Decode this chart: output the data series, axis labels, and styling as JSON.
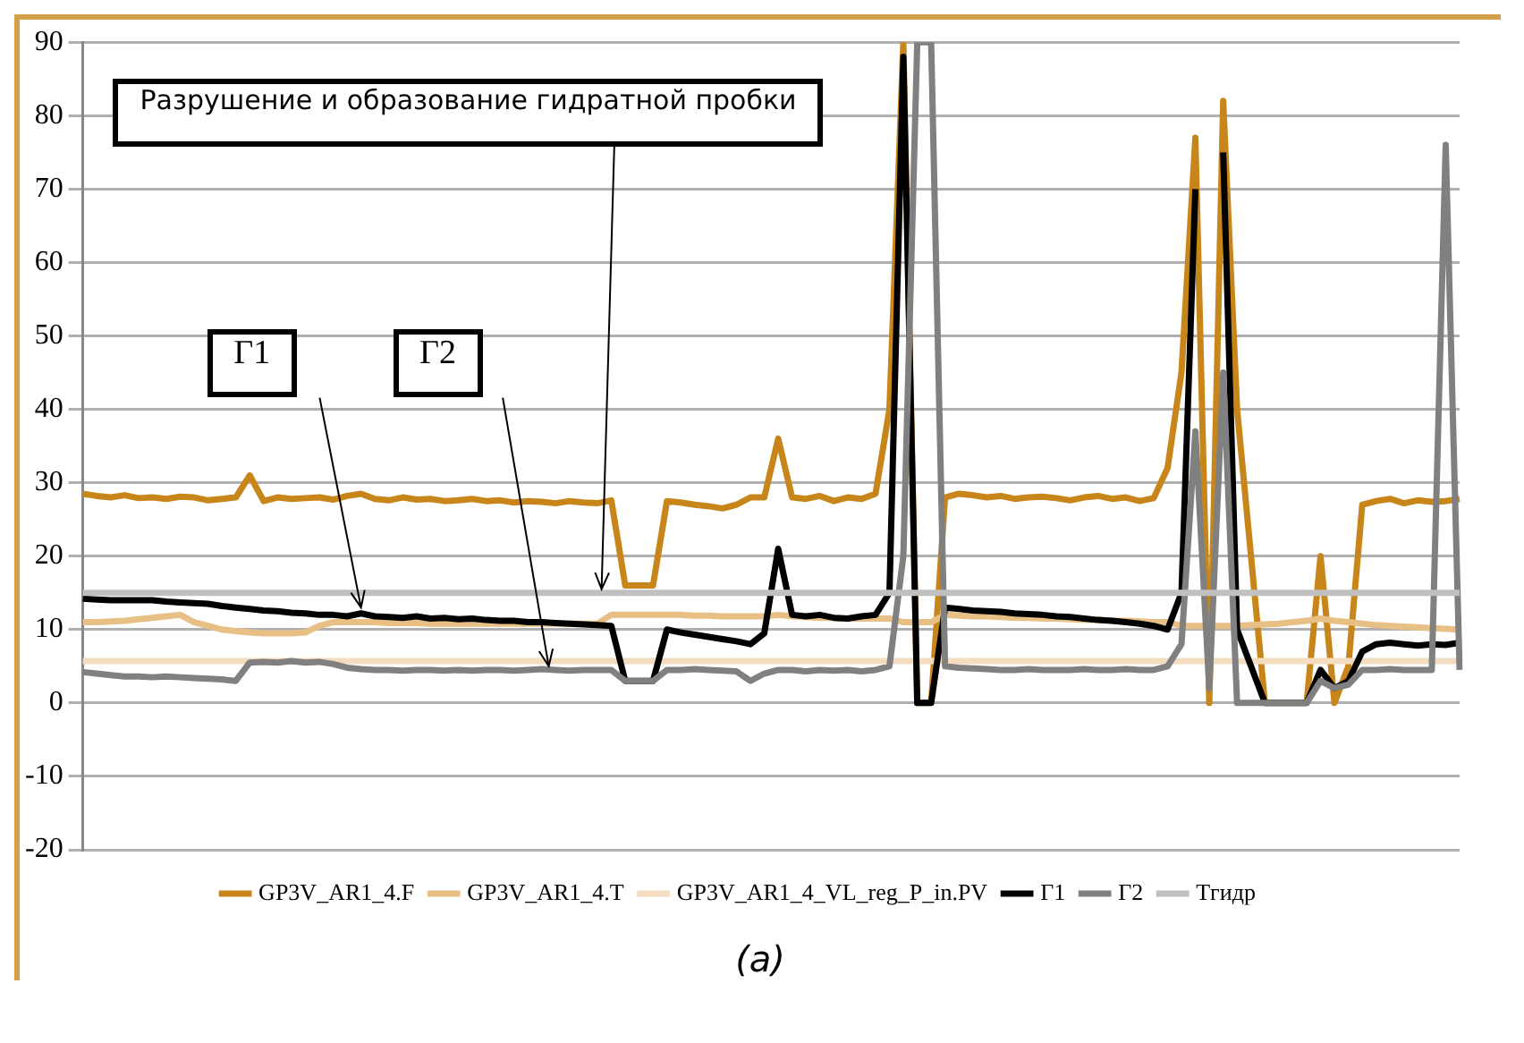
{
  "chart_data": {
    "type": "line",
    "categories": [
      null,
      null,
      null,
      null,
      null,
      null,
      null,
      null,
      null,
      null,
      null,
      null,
      null,
      null,
      null,
      null,
      null,
      null,
      null,
      null,
      null,
      null,
      null,
      null,
      null,
      null,
      null,
      null,
      null,
      null,
      null,
      null,
      null,
      null,
      null,
      null,
      null,
      null,
      null,
      null,
      null,
      null,
      null,
      null,
      null,
      null,
      null,
      null,
      null,
      null,
      null,
      null,
      null,
      null,
      null,
      null,
      null,
      null,
      null,
      null,
      null,
      null,
      null,
      null,
      null,
      null,
      null,
      null,
      null,
      null,
      null,
      null,
      null,
      null,
      null,
      null,
      null,
      null,
      null,
      null,
      null,
      null,
      null,
      null,
      null,
      null,
      null,
      null,
      null,
      null,
      null,
      null,
      null,
      null,
      null,
      null,
      null,
      null,
      null,
      null
    ],
    "series": [
      {
        "name": "GP3V_AR1_4.F",
        "color": "#c8861a",
        "values": [
          28.5,
          28.2,
          28,
          28.3,
          27.9,
          28,
          27.8,
          28.1,
          28,
          27.6,
          27.8,
          28,
          31,
          27.5,
          28,
          27.8,
          27.9,
          28,
          27.7,
          28.2,
          28.5,
          27.8,
          27.6,
          28,
          27.7,
          27.8,
          27.5,
          27.6,
          27.8,
          27.5,
          27.6,
          27.3,
          27.5,
          27.4,
          27.2,
          27.5,
          27.3,
          27.2,
          27.6,
          16,
          16,
          16,
          27.5,
          27.3,
          27,
          26.8,
          26.5,
          27,
          28,
          28,
          36,
          28,
          27.8,
          28.2,
          27.5,
          28,
          27.8,
          28.5,
          40,
          90,
          0,
          0,
          28,
          28.5,
          28.3,
          28,
          28.2,
          27.8,
          28,
          28.1,
          27.9,
          27.6,
          28,
          28.2,
          27.8,
          28,
          27.5,
          27.9,
          32,
          45,
          77,
          0,
          82,
          40,
          20,
          0,
          0,
          0,
          0,
          20,
          0,
          5,
          27,
          27.5,
          27.8,
          27.2,
          27.6,
          27.4,
          27.5,
          27.8
        ]
      },
      {
        "name": "GP3V_AR1_4.T",
        "color": "#e8bf85",
        "values": [
          11,
          11,
          11.1,
          11.2,
          11.4,
          11.6,
          11.8,
          12,
          11,
          10.5,
          10,
          9.8,
          9.6,
          9.5,
          9.5,
          9.5,
          9.6,
          10.5,
          11,
          11,
          11,
          11,
          10.9,
          10.9,
          10.9,
          10.8,
          10.8,
          10.8,
          10.8,
          10.8,
          10.8,
          10.8,
          10.8,
          10.8,
          10.8,
          10.8,
          10.8,
          10.8,
          12,
          12,
          12,
          12,
          12,
          12,
          11.9,
          11.9,
          11.8,
          11.8,
          11.8,
          11.8,
          12,
          11.8,
          11.7,
          11.6,
          11.6,
          11.5,
          11.5,
          11.5,
          11.5,
          11,
          11,
          11,
          12,
          11.9,
          11.8,
          11.8,
          11.7,
          11.6,
          11.6,
          11.5,
          11.5,
          11.4,
          11.3,
          11.3,
          11.2,
          11.2,
          11.1,
          11,
          11,
          10.5,
          10.5,
          10.5,
          10.5,
          10.5,
          10.6,
          10.7,
          10.8,
          11,
          11.2,
          11.5,
          11.2,
          11,
          10.8,
          10.6,
          10.5,
          10.4,
          10.3,
          10.2,
          10.1,
          10
        ]
      },
      {
        "name": "GP3V_AR1_4_VL_reg_P_in.PV",
        "color": "#f3dcc0",
        "values": [
          5.7,
          5.7,
          5.7,
          5.7,
          5.7,
          5.7,
          5.7,
          5.7,
          5.7,
          5.7,
          5.7,
          5.7,
          5.7,
          5.7,
          5.7,
          5.7,
          5.7,
          5.7,
          5.7,
          5.7,
          5.7,
          5.7,
          5.7,
          5.7,
          5.7,
          5.7,
          5.7,
          5.7,
          5.7,
          5.7,
          5.7,
          5.7,
          5.7,
          5.7,
          5.7,
          5.7,
          5.7,
          5.7,
          5.7,
          5.7,
          5.7,
          5.7,
          5.7,
          5.7,
          5.7,
          5.7,
          5.7,
          5.7,
          5.7,
          5.7,
          5.7,
          5.7,
          5.7,
          5.7,
          5.7,
          5.7,
          5.7,
          5.7,
          5.7,
          5.7,
          5.7,
          5.7,
          5.7,
          5.7,
          5.7,
          5.7,
          5.7,
          5.7,
          5.7,
          5.7,
          5.7,
          5.7,
          5.7,
          5.7,
          5.7,
          5.7,
          5.7,
          5.7,
          5.7,
          5.7,
          5.7,
          5.7,
          5.7,
          5.7,
          5.7,
          5.7,
          5.7,
          5.7,
          5.7,
          5.7,
          5.7,
          5.7,
          5.7,
          5.7,
          5.7,
          5.7,
          5.7,
          5.7,
          5.7,
          5.7
        ]
      },
      {
        "name": "Г1",
        "color": "#000000",
        "values": [
          14.2,
          14.1,
          14,
          14,
          14,
          14,
          13.8,
          13.7,
          13.6,
          13.5,
          13.2,
          13,
          12.8,
          12.6,
          12.5,
          12.3,
          12.2,
          12,
          12,
          11.8,
          12.2,
          11.8,
          11.7,
          11.6,
          11.8,
          11.5,
          11.6,
          11.4,
          11.5,
          11.3,
          11.2,
          11.2,
          11,
          11,
          10.9,
          10.8,
          10.7,
          10.6,
          10.5,
          3,
          3,
          3,
          10,
          9.6,
          9.3,
          9,
          8.7,
          8.4,
          8,
          9.5,
          21,
          12,
          11.8,
          12,
          11.6,
          11.5,
          11.8,
          12,
          15,
          88,
          0,
          0,
          13,
          12.8,
          12.6,
          12.5,
          12.4,
          12.2,
          12.1,
          12,
          11.8,
          11.7,
          11.5,
          11.3,
          11.2,
          11,
          10.8,
          10.5,
          10,
          15,
          70,
          null,
          75,
          10,
          5,
          0,
          0,
          0,
          0,
          4.5,
          2,
          3,
          7,
          8,
          8.2,
          8,
          7.8,
          8,
          7.9,
          8.2
        ]
      },
      {
        "name": "Г2",
        "color": "#808080",
        "values": [
          4.2,
          4,
          3.8,
          3.6,
          3.6,
          3.5,
          3.6,
          3.5,
          3.4,
          3.3,
          3.2,
          3,
          5.5,
          5.6,
          5.5,
          5.7,
          5.5,
          5.6,
          5.3,
          4.8,
          4.6,
          4.5,
          4.5,
          4.4,
          4.5,
          4.5,
          4.4,
          4.5,
          4.4,
          4.5,
          4.5,
          4.4,
          4.5,
          4.6,
          4.5,
          4.4,
          4.5,
          4.5,
          4.5,
          3,
          3,
          3,
          4.5,
          4.5,
          4.6,
          4.5,
          4.4,
          4.3,
          3,
          4,
          4.5,
          4.5,
          4.3,
          4.5,
          4.4,
          4.5,
          4.3,
          4.5,
          5,
          20,
          90,
          90,
          5,
          4.8,
          4.7,
          4.6,
          4.5,
          4.5,
          4.6,
          4.5,
          4.5,
          4.5,
          4.6,
          4.5,
          4.5,
          4.6,
          4.5,
          4.5,
          5,
          8,
          37,
          2,
          45,
          0,
          0,
          0,
          0,
          0,
          0,
          3,
          2,
          2.5,
          4.5,
          4.5,
          4.6,
          4.5,
          4.5,
          4.5,
          76,
          4.5
        ]
      },
      {
        "name": "Tгидр",
        "color": "#c0c0c0",
        "values": [
          15,
          15,
          15,
          15,
          15,
          15,
          15,
          15,
          15,
          15,
          15,
          15,
          15,
          15,
          15,
          15,
          15,
          15,
          15,
          15,
          15,
          15,
          15,
          15,
          15,
          15,
          15,
          15,
          15,
          15,
          15,
          15,
          15,
          15,
          15,
          15,
          15,
          15,
          15,
          15,
          15,
          15,
          15,
          15,
          15,
          15,
          15,
          15,
          15,
          15,
          15,
          15,
          15,
          15,
          15,
          15,
          15,
          15,
          15,
          15,
          15,
          15,
          15,
          15,
          15,
          15,
          15,
          15,
          15,
          15,
          15,
          15,
          15,
          15,
          15,
          15,
          15,
          15,
          15,
          15,
          15,
          15,
          15,
          15,
          15,
          15,
          15,
          15,
          15,
          15,
          15,
          15,
          15,
          15,
          15,
          15,
          15,
          15,
          15,
          15
        ]
      }
    ],
    "ylim": [
      -20,
      90
    ],
    "yticks": [
      -20,
      -10,
      0,
      10,
      20,
      30,
      40,
      50,
      60,
      70,
      80,
      90
    ],
    "grid": "y",
    "legend": "bottom",
    "marker": "none",
    "line_style": "solid",
    "tick_labels": "y",
    "annotations": [
      "Разрушение и образование гидратной пробки",
      "Г1",
      "Г2",
      "(a)"
    ]
  }
}
